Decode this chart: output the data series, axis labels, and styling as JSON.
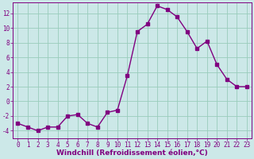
{
  "x": [
    0,
    1,
    2,
    3,
    4,
    5,
    6,
    7,
    8,
    9,
    10,
    11,
    12,
    13,
    14,
    15,
    16,
    17,
    18,
    19,
    20,
    21,
    22,
    23
  ],
  "y": [
    -3,
    -3.5,
    -4,
    -3.5,
    -3.5,
    -2,
    -1.8,
    -3,
    -3.5,
    -1.5,
    -1.2,
    3.5,
    9.5,
    10.5,
    13,
    12.5,
    11.5,
    9.5,
    7.2,
    8.2,
    5,
    3,
    2,
    2
  ],
  "line_color": "#800080",
  "marker": "s",
  "marker_size": 2.5,
  "bg_color": "#cce8e8",
  "grid_color": "#99ccbb",
  "xlabel": "Windchill (Refroidissement éolien,°C)",
  "xlabel_fontsize": 6.5,
  "xlim": [
    -0.5,
    23.5
  ],
  "ylim": [
    -5,
    13.5
  ],
  "yticks": [
    -4,
    -2,
    0,
    2,
    4,
    6,
    8,
    10,
    12
  ],
  "xticks": [
    0,
    1,
    2,
    3,
    4,
    5,
    6,
    7,
    8,
    9,
    10,
    11,
    12,
    13,
    14,
    15,
    16,
    17,
    18,
    19,
    20,
    21,
    22,
    23
  ],
  "tick_fontsize": 5.5,
  "line_width": 1.0
}
